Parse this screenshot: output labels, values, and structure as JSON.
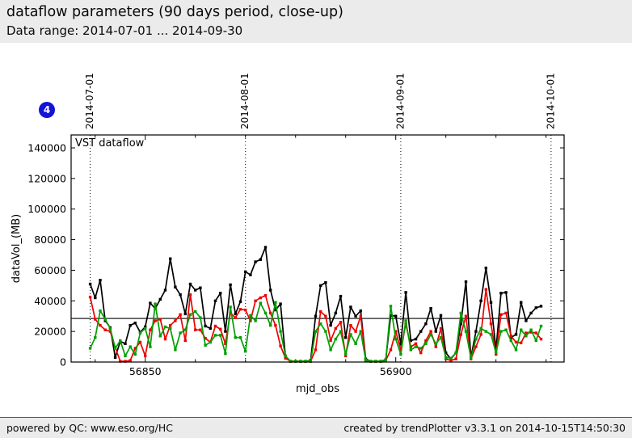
{
  "header": {
    "title": "dataflow parameters (90 days period, close-up)",
    "subtitle": "Data range: 2014-07-01 ... 2014-09-30"
  },
  "badge": {
    "label": "4",
    "color": "#1414d6"
  },
  "footer": {
    "left": "powered by QC: www.eso.org/HC",
    "right": "created by trendPlotter v3.3.1 on 2014-10-15T14:50:30"
  },
  "chart_data": {
    "type": "line",
    "inside_label": "VST dataflow",
    "xlabel": "mjd_obs",
    "ylabel": "dataVol_(MB)",
    "xlim": [
      56835.2,
      56933.6
    ],
    "ylim": [
      0,
      148450
    ],
    "grid": "dotted vertical lines at month starts only",
    "legend_position": "none (label inside top-left)",
    "y_ticks": [
      0,
      20000,
      40000,
      60000,
      80000,
      100000,
      120000,
      140000
    ],
    "x_ticks_major": [
      56850,
      56900
    ],
    "x_ticks_minor": [
      56840,
      56860,
      56870,
      56880,
      56890,
      56910,
      56920,
      56930
    ],
    "month_lines": [
      {
        "label": "2014-07-01",
        "mjd": 56839
      },
      {
        "label": "2014-08-01",
        "mjd": 56870
      },
      {
        "label": "2014-09-01",
        "mjd": 56901
      },
      {
        "label": "2014-10-01",
        "mjd": 56931
      }
    ],
    "reference_line_y": 28500,
    "x": [
      56839,
      56840,
      56841,
      56842,
      56843,
      56844,
      56845,
      56846,
      56847,
      56848,
      56849,
      56850,
      56851,
      56852,
      56853,
      56854,
      56855,
      56856,
      56857,
      56858,
      56859,
      56860,
      56861,
      56862,
      56863,
      56864,
      56865,
      56866,
      56867,
      56868,
      56869,
      56870,
      56871,
      56872,
      56873,
      56874,
      56875,
      56876,
      56877,
      56878,
      56879,
      56880,
      56881,
      56882,
      56883,
      56884,
      56885,
      56886,
      56887,
      56888,
      56889,
      56890,
      56891,
      56892,
      56893,
      56894,
      56895,
      56896,
      56897,
      56898,
      56899,
      56900,
      56901,
      56902,
      56903,
      56904,
      56905,
      56906,
      56907,
      56908,
      56909,
      56910,
      56911,
      56912,
      56913,
      56914,
      56915,
      56916,
      56917,
      56918,
      56919,
      56920,
      56921,
      56922,
      56923,
      56924,
      56925,
      56926,
      56927,
      56928,
      56929
    ],
    "series": [
      {
        "name": "black-total",
        "color": "#000000",
        "values": [
          51000,
          42000,
          53500,
          27000,
          22500,
          3000,
          13500,
          12000,
          24000,
          25500,
          19500,
          23000,
          38500,
          35000,
          41000,
          47000,
          67500,
          49000,
          44000,
          31500,
          51000,
          47000,
          48500,
          23500,
          22000,
          40000,
          45000,
          20000,
          50500,
          31500,
          39500,
          59000,
          57000,
          65500,
          67000,
          75000,
          47000,
          34000,
          38000,
          3000,
          500,
          500,
          500,
          500,
          1000,
          30000,
          50000,
          52000,
          24000,
          32000,
          43000,
          16000,
          36000,
          30000,
          33500,
          2000,
          500,
          500,
          500,
          1500,
          30500,
          30000,
          12000,
          45500,
          14000,
          15000,
          20000,
          25000,
          35000,
          20000,
          30500,
          6000,
          2000,
          6000,
          25000,
          52500,
          3000,
          20000,
          40000,
          61500,
          39000,
          8000,
          45000,
          45500,
          16000,
          18000,
          39000,
          27000,
          32000,
          35500,
          36500
        ]
      },
      {
        "name": "red",
        "color": "#ee0000",
        "values": [
          42500,
          28000,
          24000,
          21000,
          20000,
          9500,
          500,
          500,
          1000,
          9000,
          13000,
          4000,
          21000,
          27000,
          28000,
          15000,
          24000,
          27000,
          31000,
          14000,
          44000,
          21000,
          21000,
          15500,
          13000,
          23500,
          21500,
          12000,
          32000,
          29000,
          34500,
          34000,
          27000,
          40000,
          42000,
          43500,
          32000,
          24000,
          10500,
          2500,
          500,
          500,
          500,
          500,
          500,
          8000,
          33000,
          30000,
          14000,
          22000,
          26000,
          4000,
          24000,
          20000,
          30000,
          1000,
          500,
          500,
          500,
          1000,
          8000,
          20000,
          8000,
          25000,
          10000,
          12000,
          6000,
          14000,
          20000,
          10000,
          22000,
          2000,
          1000,
          2000,
          18000,
          30000,
          2000,
          10000,
          18000,
          47500,
          25000,
          5000,
          31000,
          32000,
          17000,
          13000,
          12500,
          19000,
          19500,
          19000,
          15000
        ]
      },
      {
        "name": "green",
        "color": "#00a000",
        "values": [
          9000,
          16000,
          33500,
          28000,
          22000,
          9000,
          14000,
          4000,
          10000,
          5000,
          19000,
          22000,
          10000,
          38000,
          17000,
          23000,
          22000,
          8000,
          19000,
          21000,
          31000,
          33000,
          29000,
          11000,
          13000,
          17500,
          17500,
          5500,
          36000,
          16000,
          16000,
          7000,
          30500,
          27000,
          38500,
          32000,
          24000,
          39000,
          20000,
          4000,
          500,
          500,
          500,
          500,
          500,
          20000,
          25000,
          20000,
          8000,
          15000,
          20000,
          5000,
          18000,
          12000,
          20000,
          1500,
          500,
          500,
          500,
          1000,
          36500,
          15000,
          5000,
          27000,
          8000,
          10000,
          9000,
          12000,
          18000,
          12000,
          16000,
          3000,
          2500,
          6000,
          32000,
          20000,
          2500,
          15000,
          22000,
          20000,
          18000,
          6000,
          20000,
          21000,
          14000,
          8000,
          21000,
          17000,
          21000,
          14000,
          23500
        ]
      }
    ]
  }
}
